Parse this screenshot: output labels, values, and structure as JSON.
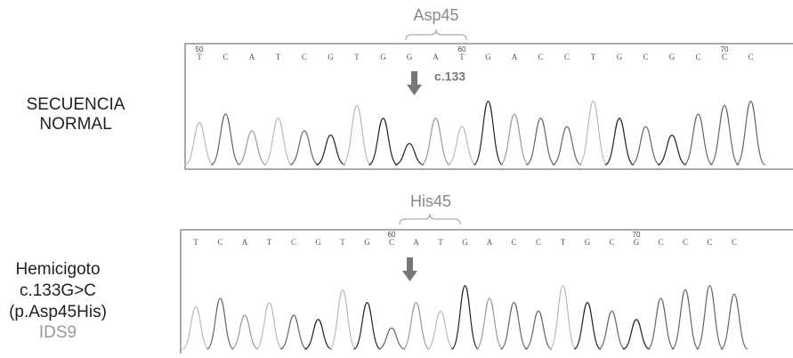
{
  "panels": [
    {
      "codon": "Asp45",
      "mutation_label": "c.133",
      "bases": [
        "T",
        "C",
        "A",
        "T",
        "C",
        "G",
        "T",
        "G",
        "G",
        "A",
        "T",
        "G",
        "A",
        "C",
        "C",
        "T",
        "G",
        "C",
        "G",
        "C",
        "C",
        "C"
      ],
      "positions": [
        "50",
        null,
        null,
        null,
        null,
        null,
        null,
        null,
        null,
        null,
        "60",
        null,
        null,
        null,
        null,
        null,
        null,
        null,
        null,
        null,
        "70",
        null
      ],
      "side_label": [
        "SECUENCIA",
        "NORMAL"
      ]
    },
    {
      "codon": "His45",
      "bases": [
        "T",
        "C",
        "A",
        "T",
        "C",
        "G",
        "T",
        "G",
        "C",
        "A",
        "T",
        "G",
        "A",
        "C",
        "C",
        "T",
        "G",
        "C",
        "G",
        "C",
        "C",
        "C",
        "C"
      ],
      "positions": [
        null,
        null,
        null,
        null,
        null,
        null,
        null,
        null,
        "60",
        null,
        null,
        null,
        null,
        null,
        null,
        null,
        null,
        null,
        "70",
        null,
        null,
        null,
        null
      ],
      "side_label": [
        "Hemicigoto",
        "c.133G>C",
        "(p.Asp45His)",
        "IDS9"
      ]
    }
  ]
}
